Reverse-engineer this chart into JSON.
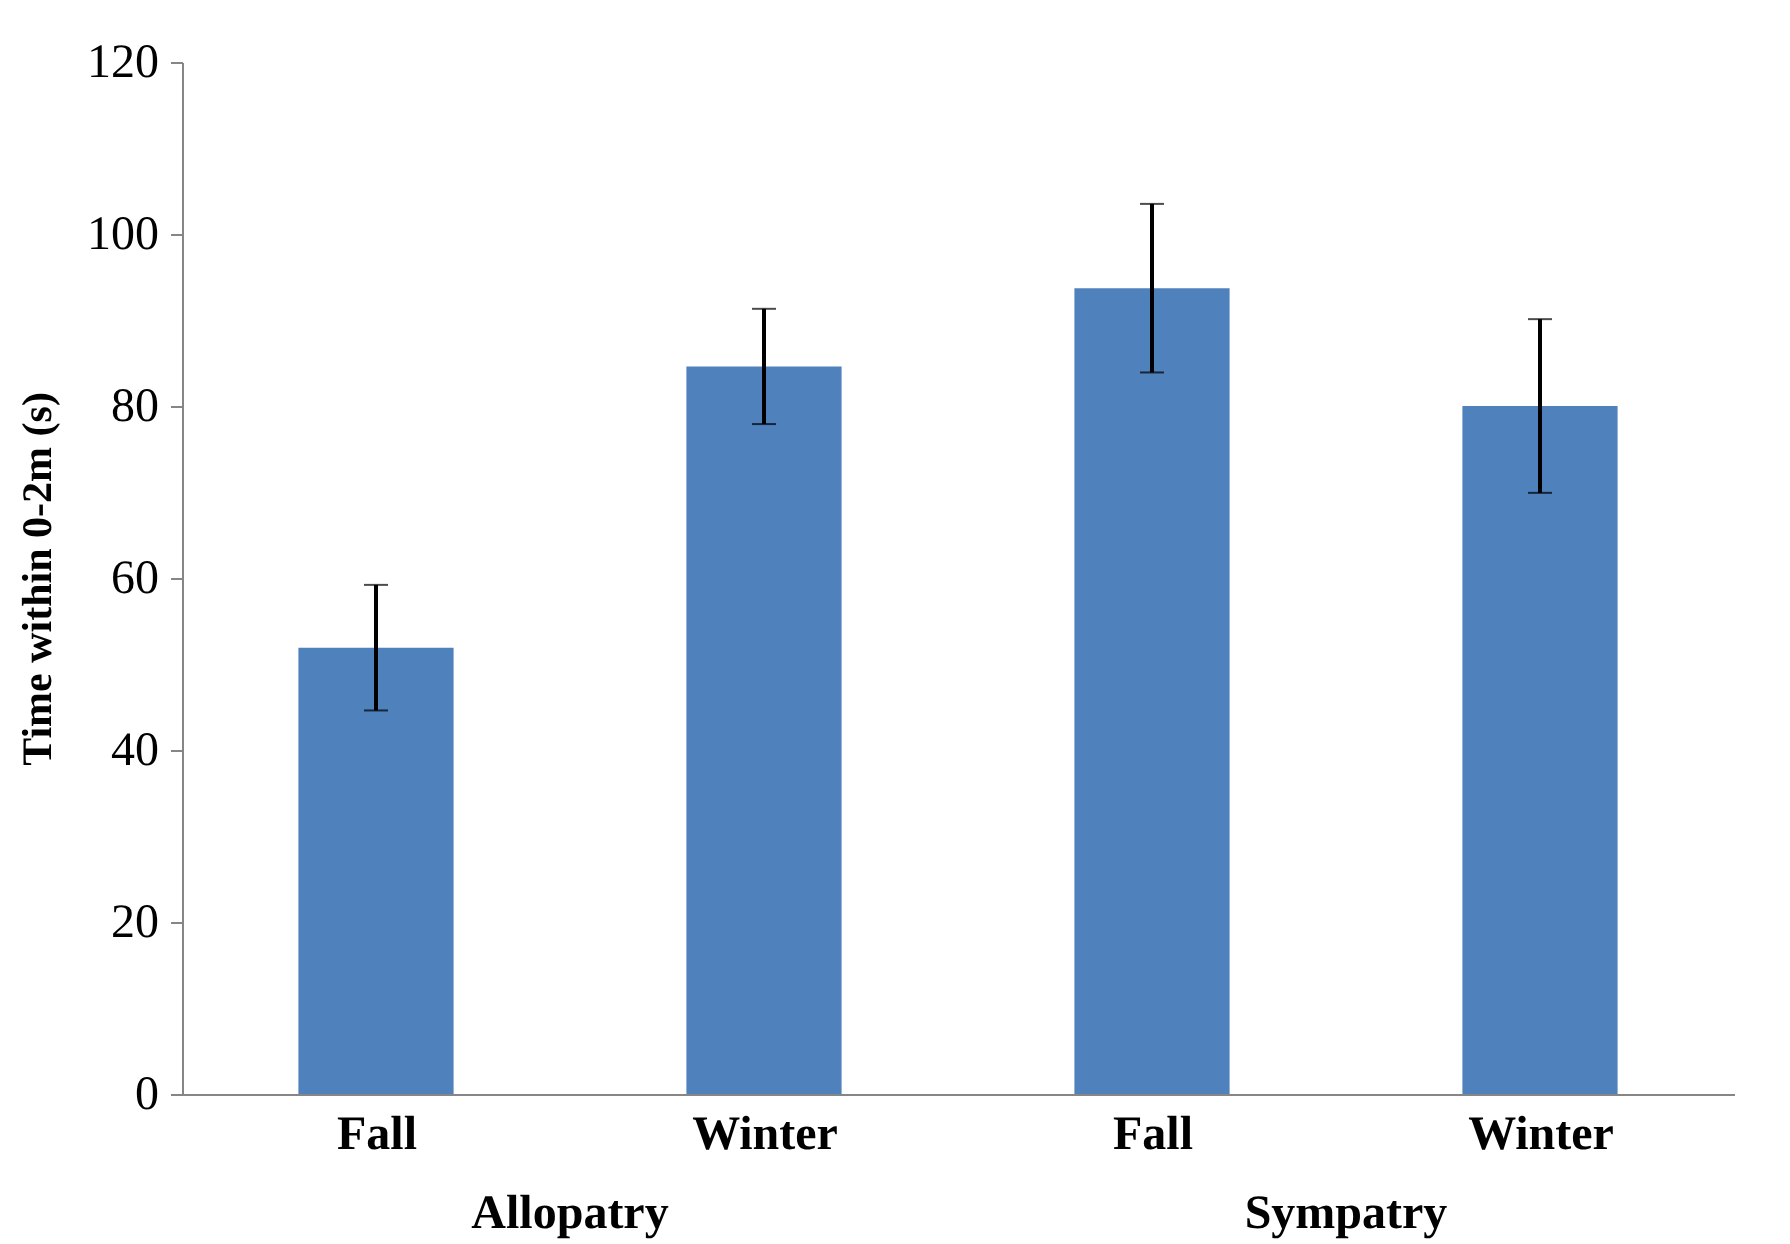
{
  "chart_data": {
    "type": "bar",
    "ylabel": "Time within 0-2m (s)",
    "categories": [
      "Fall",
      "Winter",
      "Fall",
      "Winter"
    ],
    "values": [
      51.9,
      84.6,
      93.7,
      80.0
    ],
    "errors": [
      7.3,
      6.7,
      9.8,
      10.1
    ],
    "color": "#4f81bd",
    "ylim": [
      0,
      120
    ],
    "yticks": [
      0,
      20,
      40,
      60,
      80,
      100,
      120
    ],
    "grid": false,
    "annotations": [
      "Allopatry",
      "Sympatry"
    ]
  }
}
